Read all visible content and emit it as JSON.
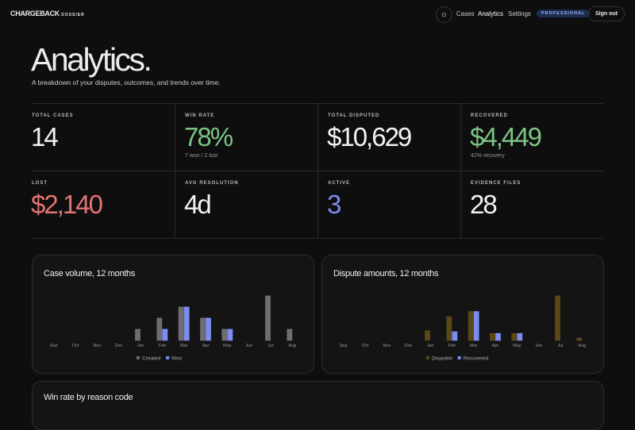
{
  "nav": {
    "brand": "CHARGEBACK",
    "brand_sub": "DOSSIER",
    "links": [
      "Cases",
      "Analytics",
      "Settings"
    ],
    "badge": "PROFESSIONAL",
    "signout": "Sign out"
  },
  "header": {
    "title": "Analytics.",
    "subtitle": "A breakdown of your disputes, outcomes, and trends over time."
  },
  "stats": [
    {
      "label": "TOTAL CASES",
      "value": "14"
    },
    {
      "label": "WIN RATE",
      "value": "78%",
      "note": "7 won / 2 lost"
    },
    {
      "label": "TOTAL DISPUTED",
      "value": "$10,629"
    },
    {
      "label": "RECOVERED",
      "value": "$4,449",
      "note": "42% recovery"
    },
    {
      "label": "LOST",
      "value": "$2,140"
    },
    {
      "label": "AVG RESOLUTION",
      "value": "4d"
    },
    {
      "label": "ACTIVE",
      "value": "3"
    },
    {
      "label": "EVIDENCE FILES",
      "value": "28"
    }
  ],
  "chart_data": [
    {
      "type": "bar",
      "title": "Case volume, 12 months",
      "categories": [
        "Sep",
        "Oct",
        "Nov",
        "Dec",
        "Jan",
        "Feb",
        "Mar",
        "Apr",
        "May",
        "Jun",
        "Jul",
        "Aug"
      ],
      "series": [
        {
          "name": "Created",
          "color": "#6e6e72",
          "values": [
            0,
            0,
            0,
            0,
            1,
            2,
            3,
            2,
            1,
            0,
            4,
            1
          ]
        },
        {
          "name": "Won",
          "color": "#7c8cf0",
          "values": [
            0,
            0,
            0,
            0,
            0,
            1,
            3,
            2,
            1,
            0,
            0,
            0
          ]
        }
      ]
    },
    {
      "type": "bar",
      "title": "Dispute amounts, 12 months",
      "categories": [
        "Sep",
        "Oct",
        "Nov",
        "Dec",
        "Jan",
        "Feb",
        "Mar",
        "Apr",
        "May",
        "Jun",
        "Jul",
        "Aug"
      ],
      "series": [
        {
          "name": "Disputed",
          "color": "#5a4818",
          "values": [
            0,
            0,
            0,
            0,
            830,
            2050,
            2500,
            600,
            600,
            0,
            3850,
            199
          ]
        },
        {
          "name": "Recovered",
          "color": "#7c8cf0",
          "values": [
            0,
            0,
            0,
            0,
            0,
            749,
            2500,
            600,
            600,
            0,
            0,
            0
          ]
        }
      ]
    }
  ],
  "section": {
    "title": "Win rate by reason code"
  }
}
